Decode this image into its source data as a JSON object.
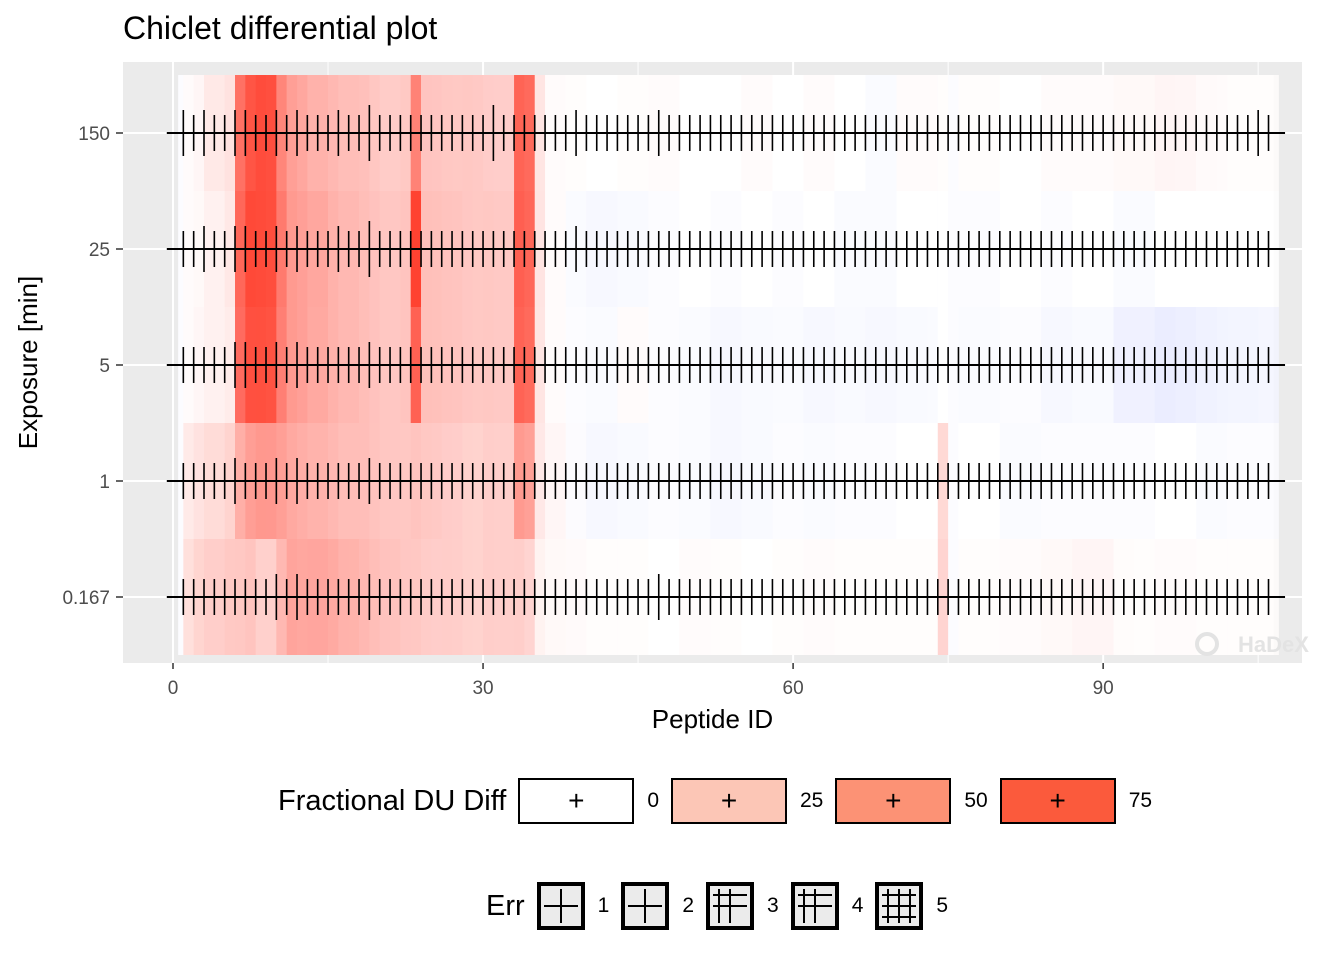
{
  "title": "Chiclet differential plot",
  "chart_data": {
    "type": "heatmap",
    "title": "Chiclet differential plot",
    "xlabel": "Peptide ID",
    "ylabel": "Exposure [min]",
    "x_ticks": [
      0,
      30,
      60,
      90
    ],
    "xlim": [
      0,
      107
    ],
    "y_categories": [
      "0.167",
      "1",
      "5",
      "25",
      "150"
    ],
    "fill_legend": {
      "title": "Fractional DU Diff",
      "values": [
        0,
        25,
        50,
        75
      ],
      "colors": [
        "#ffffff",
        "#fcc6b6",
        "#fc9275",
        "#fb5a3c"
      ]
    },
    "err_legend": {
      "title": "Err",
      "values": [
        1,
        2,
        3,
        4,
        5
      ]
    },
    "peptides": [
      {
        "id": 1,
        "start": 1,
        "end": 8
      },
      {
        "id": 2,
        "start": 2,
        "end": 10
      },
      {
        "id": 3,
        "start": 3,
        "end": 12
      },
      {
        "id": 4,
        "start": 5,
        "end": 13
      },
      {
        "id": 5,
        "start": 6,
        "end": 9
      },
      {
        "id": 6,
        "start": 7,
        "end": 12
      },
      {
        "id": 7,
        "start": 8,
        "end": 11
      },
      {
        "id": 8,
        "start": 10,
        "end": 15
      },
      {
        "id": 9,
        "start": 11,
        "end": 14
      },
      {
        "id": 10,
        "start": 11,
        "end": 17
      },
      {
        "id": 11,
        "start": 12,
        "end": 16
      },
      {
        "id": 12,
        "start": 13,
        "end": 19
      },
      {
        "id": 13,
        "start": 15,
        "end": 20
      },
      {
        "id": 14,
        "start": 16,
        "end": 21
      },
      {
        "id": 15,
        "start": 18,
        "end": 22
      },
      {
        "id": 16,
        "start": 19,
        "end": 25
      },
      {
        "id": 17,
        "start": 20,
        "end": 24
      },
      {
        "id": 18,
        "start": 22,
        "end": 27
      },
      {
        "id": 19,
        "start": 23,
        "end": 24
      },
      {
        "id": 20,
        "start": 24,
        "end": 29
      },
      {
        "id": 21,
        "start": 26,
        "end": 31
      },
      {
        "id": 22,
        "start": 28,
        "end": 33
      },
      {
        "id": 23,
        "start": 30,
        "end": 34
      },
      {
        "id": 24,
        "start": 33,
        "end": 36
      },
      {
        "id": 25,
        "start": 35,
        "end": 41
      },
      {
        "id": 26,
        "start": 38,
        "end": 43
      },
      {
        "id": 27,
        "start": 40,
        "end": 46
      },
      {
        "id": 28,
        "start": 43,
        "end": 49
      },
      {
        "id": 29,
        "start": 46,
        "end": 52
      },
      {
        "id": 30,
        "start": 49,
        "end": 55
      },
      {
        "id": 31,
        "start": 52,
        "end": 58
      },
      {
        "id": 32,
        "start": 55,
        "end": 61
      },
      {
        "id": 33,
        "start": 58,
        "end": 64
      },
      {
        "id": 34,
        "start": 61,
        "end": 67
      },
      {
        "id": 35,
        "start": 64,
        "end": 70
      },
      {
        "id": 36,
        "start": 67,
        "end": 73
      },
      {
        "id": 37,
        "start": 70,
        "end": 74
      },
      {
        "id": 38,
        "start": 74,
        "end": 75
      },
      {
        "id": 39,
        "start": 76,
        "end": 82
      },
      {
        "id": 40,
        "start": 80,
        "end": 86
      },
      {
        "id": 41,
        "start": 84,
        "end": 91
      },
      {
        "id": 42,
        "start": 87,
        "end": 93
      },
      {
        "id": 43,
        "start": 91,
        "end": 97
      },
      {
        "id": 44,
        "start": 95,
        "end": 101
      },
      {
        "id": 45,
        "start": 99,
        "end": 105
      },
      {
        "id": 46,
        "start": 102,
        "end": 107
      }
    ],
    "series": [
      {
        "exposure": "150",
        "values": [
          0.02,
          0.04,
          0.1,
          0.12,
          0.65,
          0.7,
          0.72,
          0.45,
          0.4,
          0.38,
          0.35,
          0.3,
          0.28,
          0.26,
          0.25,
          0.22,
          0.2,
          0.22,
          0.55,
          0.24,
          0.22,
          0.22,
          0.2,
          0.7,
          0.02,
          0.01,
          0.0,
          0.01,
          0.02,
          0.0,
          0.0,
          0.02,
          0.0,
          0.02,
          0.0,
          -0.02,
          0.02,
          0.01,
          0.01,
          0.0,
          0.02,
          0.02,
          0.03,
          0.04,
          0.02,
          0.01
        ]
      },
      {
        "exposure": "25",
        "values": [
          0.02,
          0.03,
          0.06,
          0.1,
          0.7,
          0.75,
          0.72,
          0.5,
          0.42,
          0.4,
          0.38,
          0.35,
          0.3,
          0.28,
          0.26,
          0.24,
          0.22,
          0.24,
          0.85,
          0.26,
          0.24,
          0.22,
          0.22,
          0.72,
          0.02,
          -0.02,
          -0.03,
          -0.02,
          -0.01,
          0.0,
          -0.01,
          0.0,
          -0.01,
          0.0,
          -0.02,
          -0.02,
          0.0,
          0.0,
          -0.01,
          0.0,
          -0.01,
          0.0,
          -0.02,
          0.0,
          0.0,
          0.0
        ]
      },
      {
        "exposure": "5",
        "values": [
          0.02,
          0.04,
          0.06,
          0.08,
          0.68,
          0.72,
          0.7,
          0.48,
          0.42,
          0.4,
          0.38,
          0.34,
          0.3,
          0.28,
          0.26,
          0.24,
          0.22,
          0.24,
          0.7,
          0.26,
          0.24,
          0.22,
          0.22,
          0.7,
          0.02,
          -0.01,
          -0.02,
          0.02,
          -0.01,
          -0.02,
          -0.03,
          -0.02,
          -0.02,
          -0.03,
          -0.02,
          -0.03,
          -0.02,
          0.0,
          -0.02,
          -0.01,
          -0.03,
          -0.02,
          -0.06,
          -0.07,
          -0.05,
          -0.04
        ]
      },
      {
        "exposure": "1",
        "values": [
          0.1,
          0.12,
          0.15,
          0.18,
          0.35,
          0.4,
          0.42,
          0.38,
          0.36,
          0.34,
          0.32,
          0.3,
          0.28,
          0.26,
          0.26,
          0.24,
          0.22,
          0.22,
          0.24,
          0.22,
          0.2,
          0.18,
          0.2,
          0.45,
          0.04,
          -0.01,
          -0.03,
          -0.02,
          -0.01,
          -0.02,
          -0.03,
          -0.02,
          -0.01,
          -0.02,
          -0.01,
          -0.01,
          0.0,
          0.18,
          0.0,
          -0.02,
          -0.01,
          -0.01,
          -0.01,
          0.0,
          -0.02,
          -0.01
        ]
      },
      {
        "exposure": "0.167",
        "values": [
          0.15,
          0.18,
          0.2,
          0.22,
          0.22,
          0.24,
          0.18,
          0.3,
          0.28,
          0.38,
          0.35,
          0.36,
          0.34,
          0.3,
          0.28,
          0.26,
          0.24,
          0.22,
          0.22,
          0.2,
          0.2,
          0.18,
          0.2,
          0.2,
          0.03,
          0.02,
          0.01,
          0.01,
          0.0,
          0.02,
          0.01,
          0.0,
          0.01,
          0.02,
          0.01,
          0.01,
          0.01,
          0.2,
          0.01,
          0.02,
          0.03,
          0.04,
          0.01,
          0.02,
          0.01,
          0.01
        ]
      }
    ],
    "err_bars": [
      {
        "exposure": "150",
        "values": [
          3,
          2,
          3,
          2,
          2,
          3,
          3,
          2,
          2,
          3,
          2,
          3,
          2,
          2,
          2,
          3,
          2,
          2,
          4,
          2,
          2,
          2,
          2,
          2,
          2,
          2,
          2,
          2,
          2,
          2,
          4,
          2,
          2,
          2,
          2,
          2,
          2,
          2,
          3,
          2,
          2,
          2,
          2,
          2,
          2,
          2,
          3,
          2,
          2,
          2,
          2,
          2,
          2,
          2,
          2,
          2,
          2,
          2,
          2,
          2,
          2,
          2,
          2,
          2,
          2,
          2,
          2,
          2,
          2,
          2,
          2,
          2,
          2,
          2,
          2,
          2,
          2,
          2,
          2,
          2,
          2,
          2,
          2,
          2,
          2,
          2,
          2,
          2,
          2,
          2,
          2,
          2,
          2,
          2,
          2,
          2,
          2,
          2,
          2,
          2,
          2,
          2,
          2,
          2,
          3,
          2
        ]
      },
      {
        "exposure": "25",
        "values": [
          2,
          2,
          3,
          2,
          2,
          3,
          3,
          2,
          2,
          3,
          2,
          3,
          2,
          2,
          2,
          3,
          2,
          2,
          4,
          2,
          2,
          2,
          2,
          2,
          2,
          2,
          2,
          2,
          2,
          2,
          2,
          2,
          2,
          2,
          2,
          2,
          2,
          2,
          3,
          2,
          2,
          2,
          2,
          2,
          2,
          2,
          2,
          2,
          2,
          2,
          2,
          2,
          2,
          2,
          2,
          2,
          2,
          2,
          2,
          2,
          2,
          2,
          2,
          2,
          2,
          2,
          2,
          2,
          2,
          2,
          2,
          2,
          2,
          2,
          2,
          2,
          2,
          2,
          2,
          2,
          2,
          2,
          2,
          2,
          2,
          2,
          2,
          2,
          2,
          2,
          2,
          2,
          2,
          2,
          2,
          2,
          2,
          2,
          2,
          2,
          2,
          2,
          2,
          2,
          2,
          2
        ]
      },
      {
        "exposure": "5",
        "values": [
          2,
          2,
          2,
          2,
          2,
          3,
          3,
          2,
          2,
          3,
          2,
          3,
          2,
          2,
          2,
          2,
          2,
          2,
          3,
          2,
          2,
          2,
          2,
          2,
          2,
          2,
          2,
          2,
          2,
          2,
          2,
          2,
          2,
          2,
          2,
          2,
          2,
          2,
          2,
          2,
          2,
          2,
          2,
          2,
          2,
          2,
          2,
          2,
          2,
          2,
          2,
          2,
          2,
          2,
          2,
          2,
          2,
          2,
          2,
          2,
          2,
          2,
          2,
          2,
          2,
          2,
          2,
          2,
          2,
          2,
          2,
          2,
          2,
          2,
          2,
          2,
          2,
          2,
          2,
          2,
          2,
          2,
          2,
          2,
          2,
          2,
          2,
          2,
          2,
          2,
          2,
          2,
          2,
          2,
          2,
          2,
          2,
          2,
          2,
          2,
          2,
          2,
          2,
          2,
          2,
          2
        ]
      },
      {
        "exposure": "1",
        "values": [
          2,
          2,
          2,
          2,
          2,
          3,
          2,
          2,
          2,
          3,
          2,
          3,
          2,
          2,
          2,
          2,
          2,
          2,
          3,
          2,
          2,
          2,
          2,
          2,
          2,
          2,
          2,
          2,
          2,
          2,
          2,
          2,
          2,
          2,
          2,
          2,
          2,
          2,
          2,
          2,
          2,
          2,
          2,
          2,
          2,
          2,
          2,
          2,
          2,
          2,
          2,
          2,
          2,
          2,
          2,
          2,
          2,
          2,
          2,
          2,
          2,
          2,
          2,
          2,
          2,
          2,
          2,
          2,
          2,
          2,
          2,
          2,
          2,
          2,
          2,
          2,
          2,
          2,
          2,
          2,
          2,
          2,
          2,
          2,
          2,
          2,
          2,
          2,
          2,
          2,
          2,
          2,
          2,
          2,
          2,
          2,
          2,
          2,
          2,
          2,
          2,
          2,
          2,
          2,
          2,
          2
        ]
      },
      {
        "exposure": "0.167",
        "values": [
          2,
          2,
          2,
          2,
          2,
          2,
          2,
          2,
          2,
          3,
          2,
          3,
          2,
          2,
          2,
          2,
          2,
          2,
          3,
          2,
          2,
          2,
          2,
          2,
          2,
          2,
          2,
          2,
          2,
          2,
          2,
          2,
          2,
          2,
          2,
          2,
          2,
          2,
          2,
          2,
          2,
          2,
          2,
          2,
          2,
          2,
          3,
          2,
          2,
          2,
          2,
          2,
          2,
          2,
          2,
          2,
          2,
          2,
          2,
          2,
          2,
          2,
          2,
          2,
          2,
          2,
          2,
          2,
          2,
          2,
          2,
          2,
          2,
          2,
          2,
          2,
          2,
          2,
          2,
          2,
          2,
          2,
          2,
          2,
          2,
          2,
          2,
          2,
          2,
          2,
          2,
          2,
          2,
          2,
          2,
          2,
          2,
          2,
          2,
          2,
          2,
          2,
          2,
          2,
          2,
          2
        ]
      }
    ],
    "grid": true,
    "legend_position": "bottom"
  },
  "watermark": "HaDeX",
  "legend": {
    "fill_title": "Fractional DU Diff",
    "fill_labels": [
      "0",
      "25",
      "50",
      "75"
    ],
    "err_title": "Err",
    "err_labels": [
      "1",
      "2",
      "3",
      "4",
      "5"
    ],
    "key_symbol": "+"
  }
}
